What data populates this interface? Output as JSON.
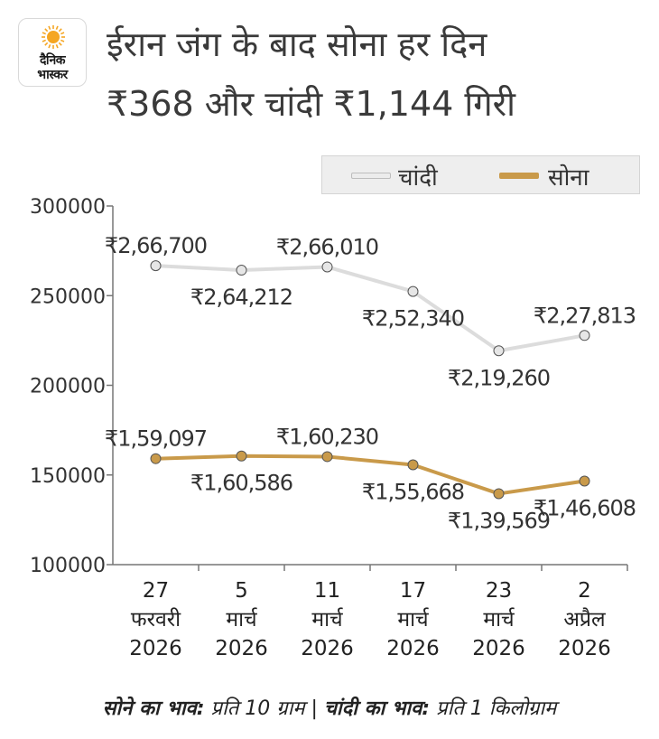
{
  "brand": {
    "line1": "दैनिक",
    "line2": "भास्कर"
  },
  "headline": {
    "line1": "ईरान जंग के बाद सोना हर दिन",
    "line2": "₹368 और चांदी ₹1,144 गिरी"
  },
  "legend": {
    "silver_label": "चांदी",
    "gold_label": "सोना"
  },
  "colors": {
    "silver": "#dcdcdc",
    "gold": "#c99a4a",
    "axis": "#777777",
    "marker_gold": "#c99a4a",
    "marker_silver": "#e6e6e6",
    "sun": "#f5a623"
  },
  "footnote": {
    "gold_label": "सोने का भाव:",
    "gold_unit": " प्रति 10 ग्राम | ",
    "silver_label": "चांदी का भाव:",
    "silver_unit": " प्रति 1 किलोग्राम"
  },
  "chart_data": {
    "type": "line",
    "title": "",
    "xlabel": "",
    "ylabel": "",
    "ylim": [
      100000,
      300000
    ],
    "yticks": [
      "300000",
      "250000",
      "200000",
      "150000",
      "100000"
    ],
    "categories": [
      [
        "27",
        "फरवरी",
        "2026"
      ],
      [
        "5",
        "मार्च",
        "2026"
      ],
      [
        "11",
        "मार्च",
        "2026"
      ],
      [
        "17",
        "मार्च",
        "2026"
      ],
      [
        "23",
        "मार्च",
        "2026"
      ],
      [
        "2",
        "अप्रैल",
        "2026"
      ]
    ],
    "series": [
      {
        "name": "चांदी",
        "values": [
          266700,
          264212,
          266010,
          252340,
          219260,
          227813
        ],
        "labels": [
          "₹2,66,700",
          "₹2,64,212",
          "₹2,66,010",
          "₹2,52,340",
          "₹2,19,260",
          "₹2,27,813"
        ],
        "label_pos": [
          "above",
          "below",
          "above",
          "below",
          "below",
          "above"
        ]
      },
      {
        "name": "सोना",
        "values": [
          159097,
          160586,
          160230,
          155668,
          139569,
          146608
        ],
        "labels": [
          "₹1,59,097",
          "₹1,60,586",
          "₹1,60,230",
          "₹1,55,668",
          "₹1,39,569",
          "₹1,46,608"
        ],
        "label_pos": [
          "above",
          "below",
          "above",
          "below",
          "below",
          "below"
        ]
      }
    ],
    "legend": "top-right",
    "grid": false
  }
}
